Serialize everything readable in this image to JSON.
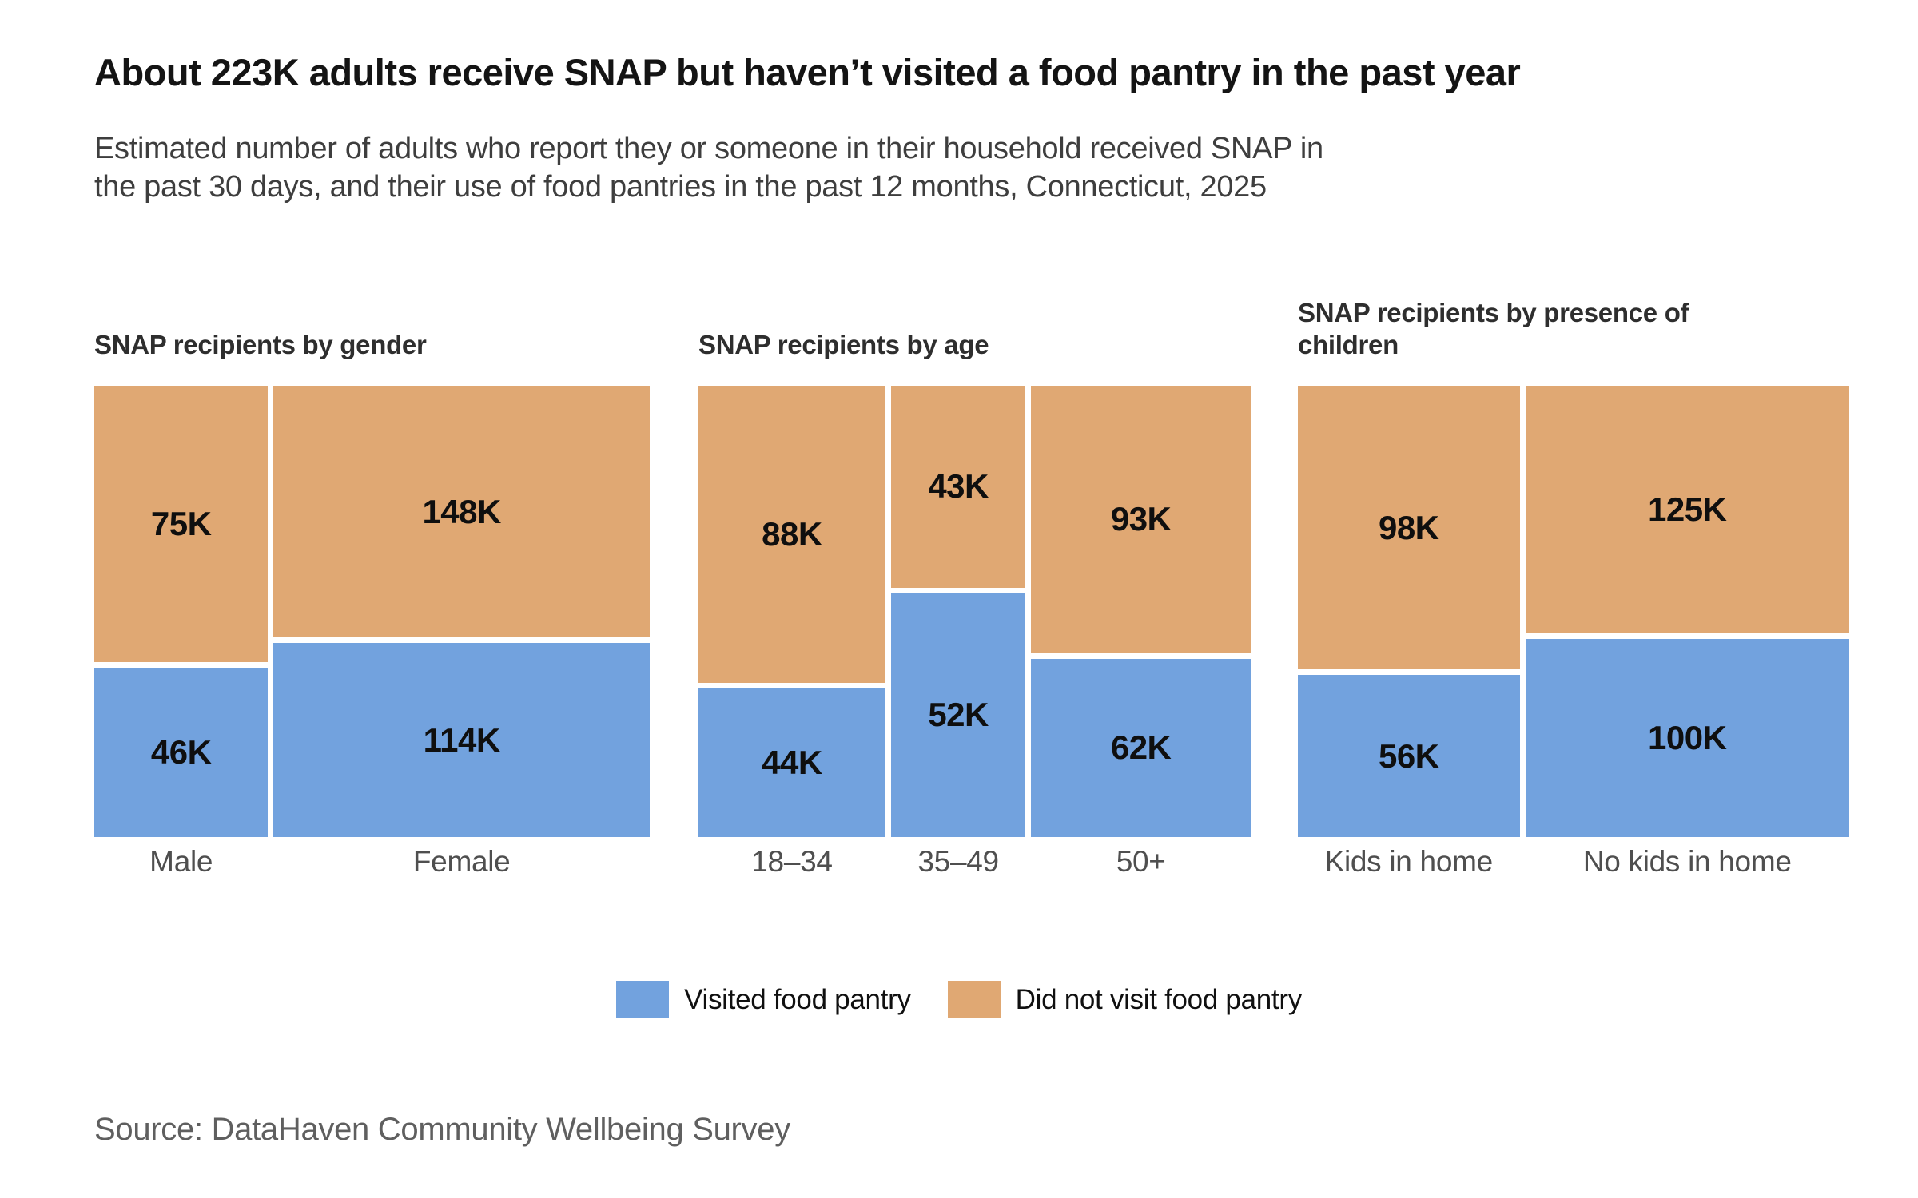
{
  "title": "About 223K adults receive SNAP but haven’t visited a food pantry in the past year",
  "subtitle_lines": [
    "Estimated number of adults who report they or someone in their household received SNAP in",
    "the past 30 days, and their use of food pantries in the past 12 months, Connecticut, 2025"
  ],
  "colors": {
    "visited": "#72A2DE",
    "not_visited": "#E0A873",
    "background": "#FFFFFF",
    "title_text": "#141414",
    "muted_text": "#4F4F4F"
  },
  "legend": {
    "visited_label": "Visited food pantry",
    "not_visited_label": "Did not visit food pantry"
  },
  "source": "Source: DataHaven Community Wellbeing Survey",
  "chart_data": {
    "type": "bar",
    "variant": "marimekko-stacked-mosaic",
    "value_unit": "adults (K = thousands)",
    "legend_position": "bottom-center",
    "series_names": [
      "Did not visit food pantry",
      "Visited food pantry"
    ],
    "panels": [
      {
        "id": "gender",
        "title": "SNAP recipients by gender",
        "categories": [
          "Male",
          "Female"
        ],
        "columns": [
          {
            "category": "Male",
            "not_visited": 75,
            "visited": 46,
            "not_visited_label": "75K",
            "visited_label": "46K"
          },
          {
            "category": "Female",
            "not_visited": 148,
            "visited": 114,
            "not_visited_label": "148K",
            "visited_label": "114K"
          }
        ]
      },
      {
        "id": "age",
        "title": "SNAP recipients by age",
        "categories": [
          "18–34",
          "35–49",
          "50+"
        ],
        "columns": [
          {
            "category": "18–34",
            "not_visited": 88,
            "visited": 44,
            "not_visited_label": "88K",
            "visited_label": "44K"
          },
          {
            "category": "35–49",
            "not_visited": 43,
            "visited": 52,
            "not_visited_label": "43K",
            "visited_label": "52K"
          },
          {
            "category": "50+",
            "not_visited": 93,
            "visited": 62,
            "not_visited_label": "93K",
            "visited_label": "62K"
          }
        ]
      },
      {
        "id": "children",
        "title": "SNAP recipients by presence of children",
        "categories": [
          "Kids in home",
          "No kids in home"
        ],
        "columns": [
          {
            "category": "Kids in home",
            "not_visited": 98,
            "visited": 56,
            "not_visited_label": "98K",
            "visited_label": "56K"
          },
          {
            "category": "No kids in home",
            "not_visited": 125,
            "visited": 100,
            "not_visited_label": "125K",
            "visited_label": "100K"
          }
        ]
      }
    ]
  }
}
